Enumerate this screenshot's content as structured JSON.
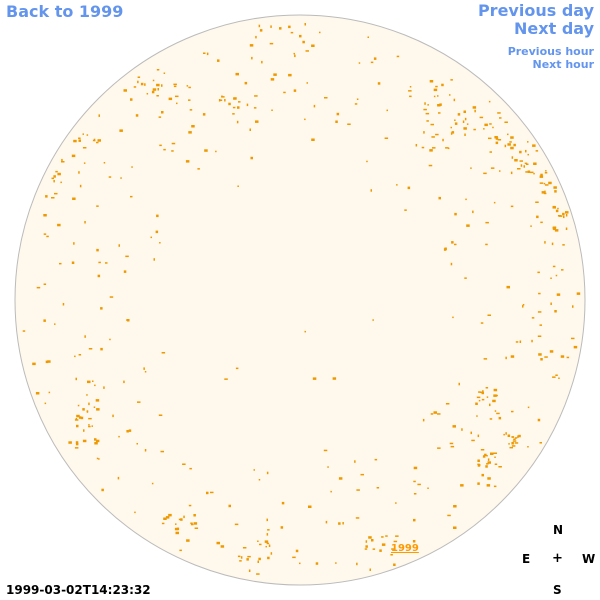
{
  "navigation": {
    "back_label": "Back to 1999",
    "previous_day_label": "Previous day",
    "next_day_label": "Next day",
    "previous_hour_label": "Previous hour",
    "next_hour_label": "Next hour"
  },
  "sun_disk": {
    "fill_color": "#fff8ec",
    "outline_color": "#bbbbbb",
    "marker_color": "#ee9900",
    "year_link_label": "1999"
  },
  "timestamp": "1999-03-02T14:23:32",
  "compass": {
    "north": "N",
    "east": "E",
    "center": "+",
    "west": "W",
    "south": "S"
  },
  "colors": {
    "link": "#6495ed",
    "year_link": "#ff9900"
  }
}
